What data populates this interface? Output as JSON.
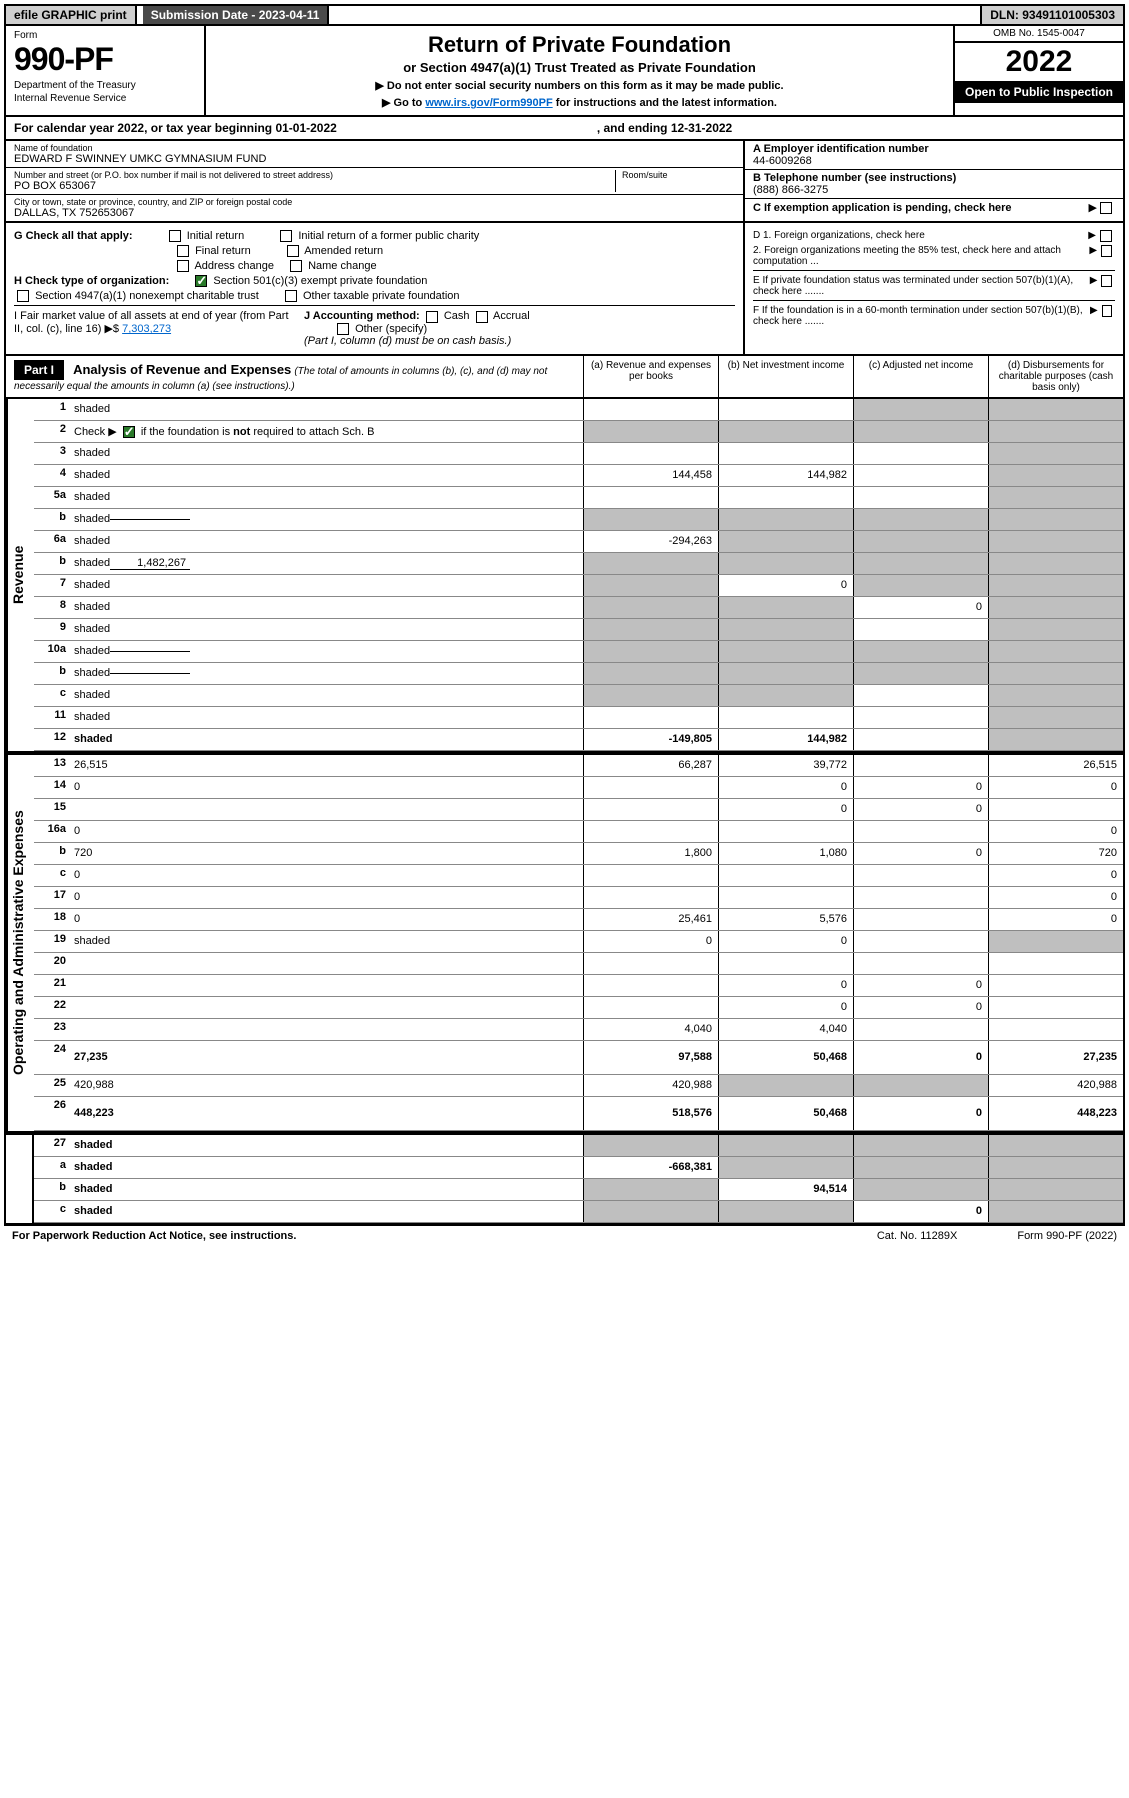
{
  "topbar": {
    "efile": "efile GRAPHIC print",
    "submission": "Submission Date - 2023-04-11",
    "dln": "DLN: 93491101005303"
  },
  "header": {
    "form_label": "Form",
    "form_no": "990-PF",
    "dept1": "Department of the Treasury",
    "dept2": "Internal Revenue Service",
    "title": "Return of Private Foundation",
    "subtitle": "or Section 4947(a)(1) Trust Treated as Private Foundation",
    "note1": "▶ Do not enter social security numbers on this form as it may be made public.",
    "note2_pre": "▶ Go to ",
    "note2_link": "www.irs.gov/Form990PF",
    "note2_post": " for instructions and the latest information.",
    "omb": "OMB No. 1545-0047",
    "year": "2022",
    "open": "Open to Public Inspection"
  },
  "calendar": {
    "text": "For calendar year 2022, or tax year beginning 01-01-2022",
    "ending": ", and ending 12-31-2022"
  },
  "info": {
    "name_lbl": "Name of foundation",
    "name_val": "EDWARD F SWINNEY UMKC GYMNASIUM FUND",
    "addr_lbl": "Number and street (or P.O. box number if mail is not delivered to street address)",
    "addr_val": "PO BOX 653067",
    "room_lbl": "Room/suite",
    "city_lbl": "City or town, state or province, country, and ZIP or foreign postal code",
    "city_val": "DALLAS, TX  752653067",
    "ein_hdr": "A Employer identification number",
    "ein_val": "44-6009268",
    "tel_hdr": "B Telephone number (see instructions)",
    "tel_val": "(888) 866-3275",
    "exempt_hdr": "C If exemption application is pending, check here"
  },
  "checks": {
    "g_label": "G Check all that apply:",
    "g_opts": [
      "Initial return",
      "Initial return of a former public charity",
      "Final return",
      "Amended return",
      "Address change",
      "Name change"
    ],
    "h_label": "H Check type of organization:",
    "h1": "Section 501(c)(3) exempt private foundation",
    "h2": "Section 4947(a)(1) nonexempt charitable trust",
    "h3": "Other taxable private foundation",
    "i_label": "I Fair market value of all assets at end of year (from Part II, col. (c), line 16) ▶$",
    "i_val": "7,303,273",
    "j_label": "J Accounting method:",
    "j_cash": "Cash",
    "j_accrual": "Accrual",
    "j_other": "Other (specify)",
    "j_note": "(Part I, column (d) must be on cash basis.)",
    "d1": "D 1. Foreign organizations, check here",
    "d2": "2. Foreign organizations meeting the 85% test, check here and attach computation ...",
    "e": "E  If private foundation status was terminated under section 507(b)(1)(A), check here .......",
    "f": "F  If the foundation is in a 60-month termination under section 507(b)(1)(B), check here ......."
  },
  "part1": {
    "label": "Part I",
    "title": "Analysis of Revenue and Expenses",
    "title_note": "(The total of amounts in columns (b), (c), and (d) may not necessarily equal the amounts in column (a) (see instructions).)",
    "col_a": "(a)  Revenue and expenses per books",
    "col_b": "(b)  Net investment income",
    "col_c": "(c)  Adjusted net income",
    "col_d": "(d)  Disbursements for charitable purposes (cash basis only)"
  },
  "revenue_label": "Revenue",
  "expenses_label": "Operating and Administrative Expenses",
  "rows": [
    {
      "n": "1",
      "d": "shaded",
      "a": "",
      "b": "",
      "c": "shaded"
    },
    {
      "n": "2",
      "d": "shaded",
      "a": "shaded",
      "b": "shaded",
      "c": "shaded",
      "check": true
    },
    {
      "n": "3",
      "d": "shaded",
      "a": "",
      "b": "",
      "c": ""
    },
    {
      "n": "4",
      "d": "shaded",
      "a": "144,458",
      "b": "144,982",
      "c": ""
    },
    {
      "n": "5a",
      "d": "shaded",
      "a": "",
      "b": "",
      "c": ""
    },
    {
      "n": "b",
      "d": "shaded",
      "a": "shaded",
      "b": "shaded",
      "c": "shaded",
      "inline": ""
    },
    {
      "n": "6a",
      "d": "shaded",
      "a": "-294,263",
      "b": "shaded",
      "c": "shaded"
    },
    {
      "n": "b",
      "d": "shaded",
      "a": "shaded",
      "b": "shaded",
      "c": "shaded",
      "inline": "1,482,267"
    },
    {
      "n": "7",
      "d": "shaded",
      "a": "shaded",
      "b": "0",
      "c": "shaded"
    },
    {
      "n": "8",
      "d": "shaded",
      "a": "shaded",
      "b": "shaded",
      "c": "0"
    },
    {
      "n": "9",
      "d": "shaded",
      "a": "shaded",
      "b": "shaded",
      "c": ""
    },
    {
      "n": "10a",
      "d": "shaded",
      "a": "shaded",
      "b": "shaded",
      "c": "shaded",
      "inline": ""
    },
    {
      "n": "b",
      "d": "shaded",
      "a": "shaded",
      "b": "shaded",
      "c": "shaded",
      "inline": ""
    },
    {
      "n": "c",
      "d": "shaded",
      "a": "shaded",
      "b": "shaded",
      "c": ""
    },
    {
      "n": "11",
      "d": "shaded",
      "a": "",
      "b": "",
      "c": ""
    },
    {
      "n": "12",
      "d": "shaded",
      "a": "-149,805",
      "b": "144,982",
      "c": "",
      "bold": true
    }
  ],
  "exp_rows": [
    {
      "n": "13",
      "d": "26,515",
      "a": "66,287",
      "b": "39,772",
      "c": ""
    },
    {
      "n": "14",
      "d": "0",
      "a": "",
      "b": "0",
      "c": "0"
    },
    {
      "n": "15",
      "d": "",
      "a": "",
      "b": "0",
      "c": "0"
    },
    {
      "n": "16a",
      "d": "0",
      "a": "",
      "b": "",
      "c": ""
    },
    {
      "n": "b",
      "d": "720",
      "a": "1,800",
      "b": "1,080",
      "c": "0"
    },
    {
      "n": "c",
      "d": "0",
      "a": "",
      "b": "",
      "c": ""
    },
    {
      "n": "17",
      "d": "0",
      "a": "",
      "b": "",
      "c": ""
    },
    {
      "n": "18",
      "d": "0",
      "a": "25,461",
      "b": "5,576",
      "c": ""
    },
    {
      "n": "19",
      "d": "shaded",
      "a": "0",
      "b": "0",
      "c": ""
    },
    {
      "n": "20",
      "d": "",
      "a": "",
      "b": "",
      "c": ""
    },
    {
      "n": "21",
      "d": "",
      "a": "",
      "b": "0",
      "c": "0"
    },
    {
      "n": "22",
      "d": "",
      "a": "",
      "b": "0",
      "c": "0"
    },
    {
      "n": "23",
      "d": "",
      "a": "4,040",
      "b": "4,040",
      "c": ""
    },
    {
      "n": "24",
      "d": "27,235",
      "a": "97,588",
      "b": "50,468",
      "c": "0",
      "bold": true,
      "tall": true
    },
    {
      "n": "25",
      "d": "420,988",
      "a": "420,988",
      "b": "shaded",
      "c": "shaded"
    },
    {
      "n": "26",
      "d": "448,223",
      "a": "518,576",
      "b": "50,468",
      "c": "0",
      "bold": true,
      "tall": true
    }
  ],
  "final_rows": [
    {
      "n": "27",
      "d": "shaded",
      "a": "shaded",
      "b": "shaded",
      "c": "shaded",
      "bold": true
    },
    {
      "n": "a",
      "d": "shaded",
      "a": "-668,381",
      "b": "shaded",
      "c": "shaded",
      "bold": true
    },
    {
      "n": "b",
      "d": "shaded",
      "a": "shaded",
      "b": "94,514",
      "c": "shaded",
      "bold": true
    },
    {
      "n": "c",
      "d": "shaded",
      "a": "shaded",
      "b": "shaded",
      "c": "0",
      "bold": true
    }
  ],
  "footer": {
    "l": "For Paperwork Reduction Act Notice, see instructions.",
    "c": "Cat. No. 11289X",
    "r": "Form 990-PF (2022)"
  }
}
